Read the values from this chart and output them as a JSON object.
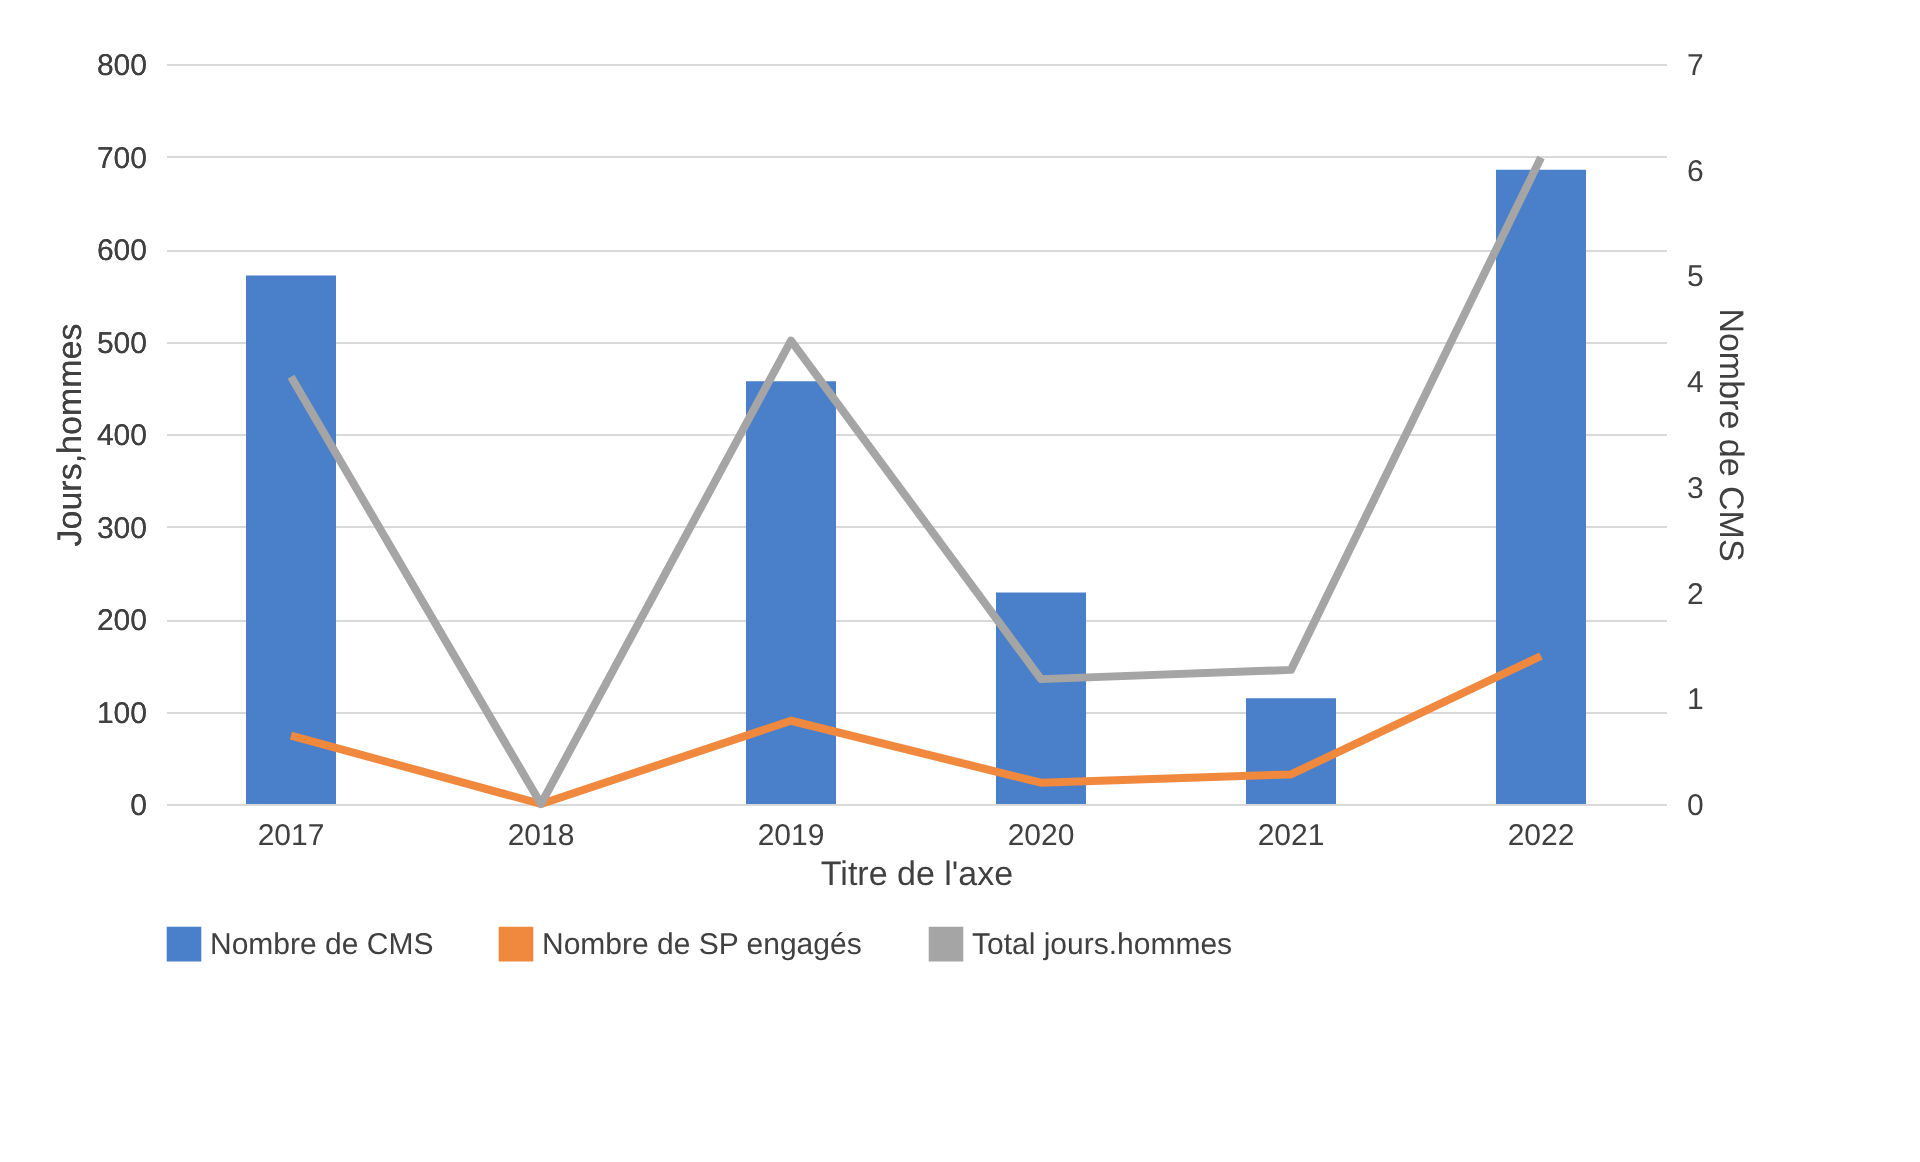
{
  "chart_data": {
    "type": "bar",
    "xlabel": "Titre de l'axe",
    "ylabel": "Jours,hommes",
    "y2label": "Nombre de CMS",
    "categories": [
      "2017",
      "2018",
      "2019",
      "2020",
      "2021",
      "2022"
    ],
    "series": [
      {
        "name": "Nombre de CMS",
        "axis": "y2",
        "color": "#4a7fc9",
        "values": [
          5,
          0,
          4,
          2,
          1,
          6
        ]
      },
      {
        "name": "Nombre de SP engagés",
        "type": "line",
        "color": "#f0883e",
        "values": [
          74,
          0,
          90,
          23,
          32,
          160
        ]
      },
      {
        "name": "Total jours.hommes",
        "type": "line",
        "color": "#a5a5a5",
        "values": [
          462,
          0,
          501,
          135,
          145,
          699
        ]
      }
    ],
    "ylim": [
      0,
      800
    ],
    "yticks": [
      0,
      100,
      200,
      300,
      400,
      500,
      600,
      700,
      800
    ],
    "y2lim": [
      0,
      7
    ],
    "y2ticks": [
      0,
      1,
      2,
      3,
      4,
      5,
      6,
      7
    ],
    "grid": "y",
    "legend": "bottom",
    "marker": "none",
    "line_style": "solid"
  }
}
